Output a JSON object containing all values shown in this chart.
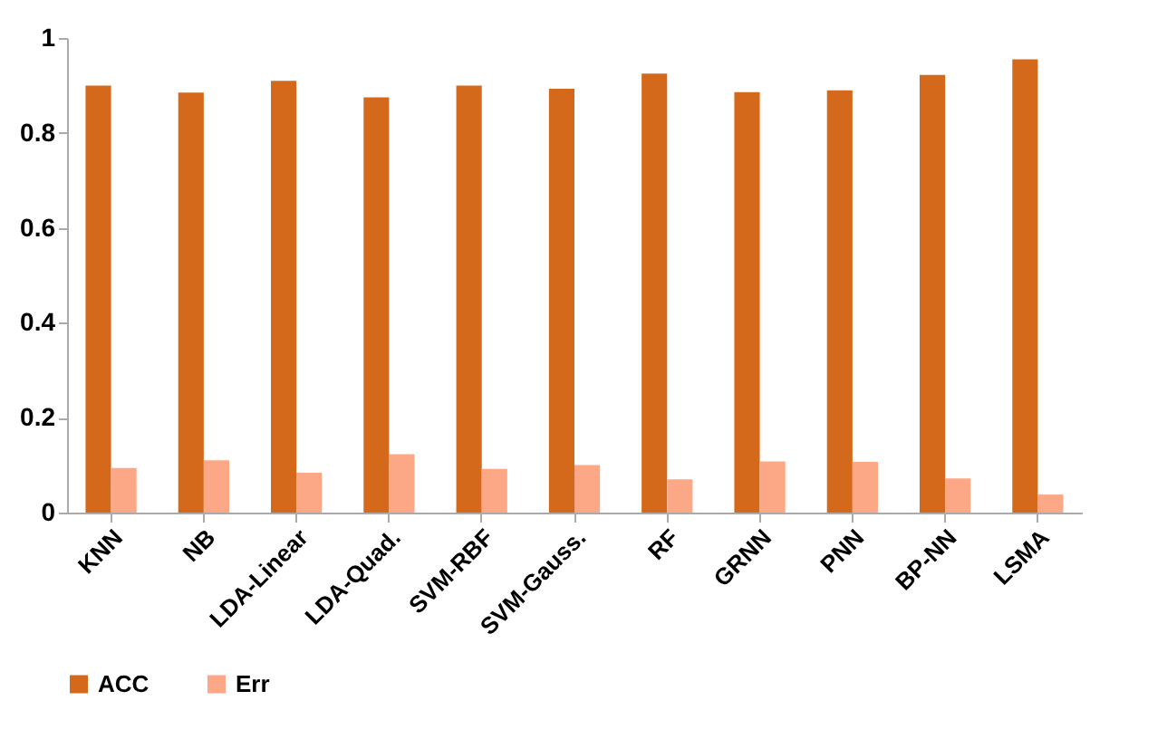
{
  "chart_data": {
    "type": "bar",
    "categories": [
      "KNN",
      "NB",
      "LDA-Linear",
      "LDA-Quad.",
      "SVM-RBF",
      "SVM-Gauss.",
      "RF",
      "GRNN",
      "PNN",
      "BP-NN",
      "LSMA"
    ],
    "series": [
      {
        "name": "ACC",
        "color": "#d4691b",
        "values": [
          0.9,
          0.885,
          0.91,
          0.875,
          0.9,
          0.893,
          0.925,
          0.886,
          0.89,
          0.922,
          0.955
        ]
      },
      {
        "name": "Err",
        "color": "#fca886",
        "values": [
          0.094,
          0.11,
          0.084,
          0.123,
          0.092,
          0.1,
          0.07,
          0.108,
          0.107,
          0.072,
          0.038
        ]
      }
    ],
    "ylim": [
      0,
      1
    ],
    "yticks": [
      0,
      0.2,
      0.4,
      0.6,
      0.8,
      1
    ],
    "grid": false,
    "legend": "bottom"
  }
}
